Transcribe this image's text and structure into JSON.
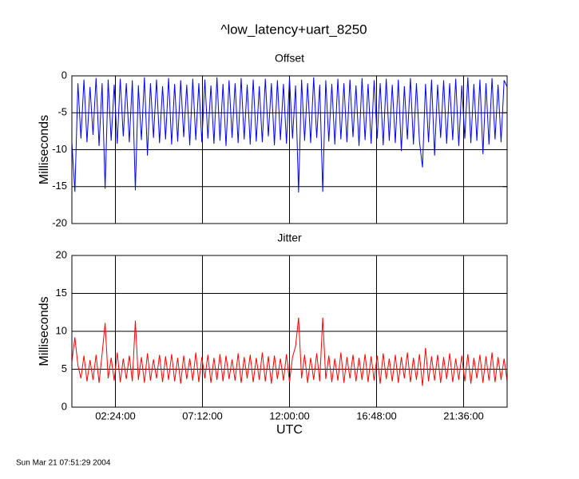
{
  "title": "^low_latency+uart_8250",
  "timestamp": "Sun Mar 21 07:51:29 2004",
  "chart_data": [
    {
      "type": "line",
      "title": "Offset",
      "ylabel": "Milliseconds",
      "x": [
        0,
        600,
        1200,
        1800,
        2400,
        3000,
        3600,
        4200,
        4800,
        5400,
        6000,
        6600,
        7200,
        7800,
        8400,
        9000,
        9600,
        10200,
        10800,
        11400,
        12000,
        12600,
        13200,
        13800,
        14400,
        15000,
        15600,
        16200,
        16800,
        17400,
        18000,
        18600,
        19200,
        19800,
        20400,
        21000,
        21600,
        22200,
        22800,
        23400,
        24000,
        24600,
        25200,
        25800,
        26400,
        27000,
        27600,
        28200,
        28800,
        29400,
        30000,
        30600,
        31200,
        31800,
        32400,
        33000,
        33600,
        34200,
        34800,
        35400,
        36000,
        36600,
        37200,
        37800,
        38400,
        39000,
        39600,
        40200,
        40800,
        41400,
        42000,
        42600,
        43200,
        43800,
        44400,
        45000,
        45600,
        46200,
        46800,
        47400,
        48000,
        48600,
        49200,
        49800,
        50400,
        51000,
        51600,
        52200,
        52800,
        53400,
        54000,
        54600,
        55200,
        55800,
        56400,
        57000,
        57600,
        58200,
        58800,
        59400,
        60000,
        60600,
        61200,
        61800,
        62400,
        63000,
        63600,
        64200,
        64800,
        65400,
        66000,
        66600,
        67200,
        67800,
        68400,
        69000,
        69600,
        70200,
        70800,
        71400,
        72000,
        72600,
        73200,
        73800,
        74400,
        75000,
        75600,
        76200,
        76800,
        77400,
        78000,
        78600,
        79200,
        79800,
        80400,
        81000,
        81600,
        82200,
        82800,
        83400,
        84000,
        84600,
        85200,
        85800,
        86400
      ],
      "series": [
        {
          "name": "Offset",
          "color": "#0000ff",
          "values": [
            -9,
            -15.7,
            -1,
            -8.5,
            -0.5,
            -9,
            -1.5,
            -8,
            -0.3,
            -9.5,
            -1,
            -15.3,
            -0.5,
            -8.8,
            -1.2,
            -9.2,
            -0.4,
            -8.2,
            -1,
            -9,
            -0.6,
            -15.5,
            -1.3,
            -8.7,
            -0.2,
            -10.8,
            -1,
            -8.4,
            -0.5,
            -9.1,
            -1.4,
            -8.6,
            -0.3,
            -9.3,
            -1.1,
            -8.9,
            -0.6,
            -8.3,
            -1.2,
            -9.4,
            -0.4,
            -8.7,
            -1,
            -9,
            -0.5,
            -8.5,
            -1.3,
            -9.2,
            -0.2,
            -8.8,
            -1.1,
            -9.5,
            -0.6,
            -8.4,
            -1,
            -9.1,
            -0.3,
            -8.6,
            -1.2,
            -9.3,
            -0.5,
            -8.9,
            -1.4,
            -9,
            -0.4,
            -8.2,
            -1,
            -9.4,
            -0.6,
            -8.7,
            -1.1,
            -9.2,
            -0.3,
            -8.5,
            -1.3,
            -15.8,
            -0.5,
            -8.8,
            -1,
            -9.1,
            -0.2,
            -8.4,
            -1.2,
            -15.7,
            -0.6,
            -8.9,
            -1.1,
            -9.3,
            -0.4,
            -8.6,
            -1,
            -9,
            -0.5,
            -8.3,
            -1.3,
            -9.5,
            -0.3,
            -8.7,
            -1.1,
            -9.2,
            -0.6,
            -8.5,
            -1,
            -9.4,
            -0.4,
            -8.8,
            -1.2,
            -9.1,
            -0.5,
            -10.2,
            -1.4,
            -8.6,
            -0.3,
            -9.3,
            -1,
            -8.9,
            -12.4,
            -1.1,
            -9,
            -0.5,
            -10.8,
            -1.2,
            -8.4,
            -0.6,
            -9.2,
            -1,
            -8.7,
            -0.4,
            -9.5,
            -1.3,
            -8.5,
            -0.2,
            -9.1,
            -1.1,
            -8.8,
            -0.5,
            -10.6,
            -1,
            -9.3,
            -0.3,
            -8.6,
            -1.2,
            -9,
            -0.6,
            -1.5
          ]
        }
      ],
      "xlim": [
        0,
        86400
      ],
      "ylim": [
        -20,
        0
      ],
      "yticks": [
        0,
        -5,
        -10,
        -15,
        -20
      ],
      "grid": true
    },
    {
      "type": "line",
      "title": "Jitter",
      "ylabel": "Milliseconds",
      "xlabel": "UTC",
      "x": [
        0,
        600,
        1200,
        1800,
        2400,
        3000,
        3600,
        4200,
        4800,
        5400,
        6000,
        6600,
        7200,
        7800,
        8400,
        9000,
        9600,
        10200,
        10800,
        11400,
        12000,
        12600,
        13200,
        13800,
        14400,
        15000,
        15600,
        16200,
        16800,
        17400,
        18000,
        18600,
        19200,
        19800,
        20400,
        21000,
        21600,
        22200,
        22800,
        23400,
        24000,
        24600,
        25200,
        25800,
        26400,
        27000,
        27600,
        28200,
        28800,
        29400,
        30000,
        30600,
        31200,
        31800,
        32400,
        33000,
        33600,
        34200,
        34800,
        35400,
        36000,
        36600,
        37200,
        37800,
        38400,
        39000,
        39600,
        40200,
        40800,
        41400,
        42000,
        42600,
        43200,
        43800,
        44400,
        45000,
        45600,
        46200,
        46800,
        47400,
        48000,
        48600,
        49200,
        49800,
        50400,
        51000,
        51600,
        52200,
        52800,
        53400,
        54000,
        54600,
        55200,
        55800,
        56400,
        57000,
        57600,
        58200,
        58800,
        59400,
        60000,
        60600,
        61200,
        61800,
        62400,
        63000,
        63600,
        64200,
        64800,
        65400,
        66000,
        66600,
        67200,
        67800,
        68400,
        69000,
        69600,
        70200,
        70800,
        71400,
        72000,
        72600,
        73200,
        73800,
        74400,
        75000,
        75600,
        76200,
        76800,
        77400,
        78000,
        78600,
        79200,
        79800,
        80400,
        81000,
        81600,
        82200,
        82800,
        83400,
        84000,
        84600,
        85200,
        85800,
        86400
      ],
      "series": [
        {
          "name": "Jitter",
          "color": "#ff0000",
          "values": [
            6,
            9.2,
            5.5,
            3.8,
            6.8,
            3.4,
            6.2,
            3.6,
            6.9,
            3.2,
            7,
            11.1,
            3.8,
            6.5,
            3.5,
            7.2,
            3.3,
            6.4,
            3.7,
            6.8,
            3.4,
            11.4,
            3.6,
            6.6,
            3.2,
            7.1,
            3.5,
            6.3,
            3.8,
            6.9,
            3.3,
            6.7,
            3.6,
            7,
            3.4,
            6.5,
            3.1,
            6.8,
            3.7,
            6.4,
            3.5,
            7.2,
            3.3,
            6.6,
            3.8,
            6.9,
            3.2,
            6.5,
            3.6,
            7,
            3.4,
            6.8,
            3.7,
            6.3,
            3.5,
            7.1,
            3.2,
            6.6,
            3.8,
            6.9,
            3.3,
            6.5,
            3.6,
            7.2,
            3.4,
            6.7,
            3.1,
            6.8,
            3.7,
            6.4,
            3.5,
            7,
            3.3,
            6.6,
            8,
            11.8,
            3.8,
            6.9,
            3.2,
            6.5,
            3.6,
            7.1,
            3.4,
            11.8,
            3.7,
            6.8,
            3.3,
            6.4,
            3.5,
            7.2,
            3.2,
            6.6,
            3.8,
            6.9,
            3.4,
            6.5,
            3.6,
            7,
            3.3,
            6.7,
            3.5,
            6.8,
            3.1,
            7.1,
            3.7,
            6.4,
            3.4,
            6.9,
            3.2,
            6.6,
            3.8,
            7.2,
            3.3,
            6.5,
            3.6,
            7,
            2.8,
            7.8,
            3.4,
            6.7,
            3.5,
            6.9,
            3.2,
            6.6,
            3.7,
            7.1,
            3.3,
            6.4,
            3.6,
            6.8,
            3.4,
            7,
            3.1,
            6.5,
            3.8,
            6.9,
            3.2,
            6.7,
            3.5,
            7.2,
            3.3,
            6.6,
            3.6,
            6.4,
            3.4
          ]
        }
      ],
      "xlim": [
        0,
        86400
      ],
      "xticks": [
        {
          "value": 8640,
          "label": "02:24:00"
        },
        {
          "value": 25920,
          "label": "07:12:00"
        },
        {
          "value": 43200,
          "label": "12:00:00"
        },
        {
          "value": 60480,
          "label": "16:48:00"
        },
        {
          "value": 77760,
          "label": "21:36:00"
        }
      ],
      "ylim": [
        0,
        20
      ],
      "yticks": [
        0,
        5,
        10,
        15,
        20
      ],
      "grid": true
    }
  ]
}
